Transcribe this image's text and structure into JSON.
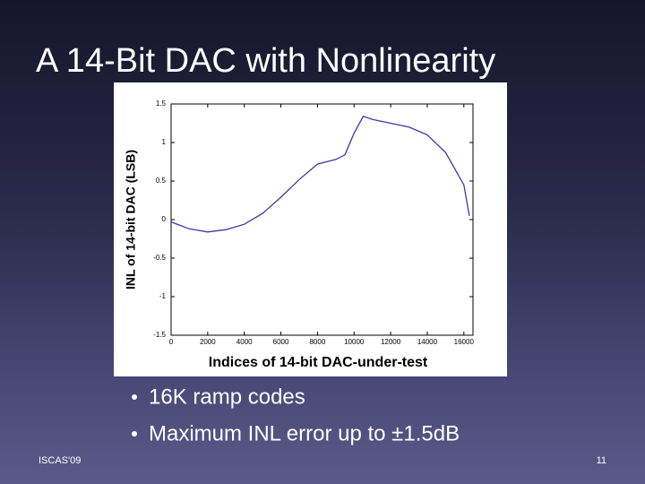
{
  "slide": {
    "title": "A 14-Bit DAC with Nonlinearity",
    "bullets": [
      "16K ramp codes",
      "Maximum INL error up to ±1.5dB"
    ],
    "footer_left": "ISCAS'09",
    "page_number": "11"
  },
  "chart_data": {
    "type": "line",
    "ylabel": "INL of 14-bit DAC (LSB)",
    "xlabel": "Indices of 14-bit DAC-under-test",
    "x": [
      0,
      1000,
      2000,
      3000,
      4000,
      5000,
      6000,
      7000,
      8000,
      9000,
      9500,
      10000,
      10500,
      11000,
      12000,
      13000,
      14000,
      15000,
      16000,
      16300
    ],
    "values": [
      -0.03,
      -0.12,
      -0.16,
      -0.13,
      -0.06,
      0.08,
      0.29,
      0.52,
      0.72,
      0.78,
      0.84,
      1.12,
      1.34,
      1.3,
      1.25,
      1.2,
      1.1,
      0.87,
      0.45,
      0.05
    ],
    "color": "#3a3aa8",
    "xlim": [
      0,
      16500
    ],
    "xticks": [
      0,
      2000,
      4000,
      6000,
      8000,
      10000,
      12000,
      14000,
      16000
    ],
    "ylim": [
      -1.5,
      1.5
    ],
    "yticks": [
      -1.5,
      -1,
      -0.5,
      0,
      0.5,
      1,
      1.5
    ]
  }
}
